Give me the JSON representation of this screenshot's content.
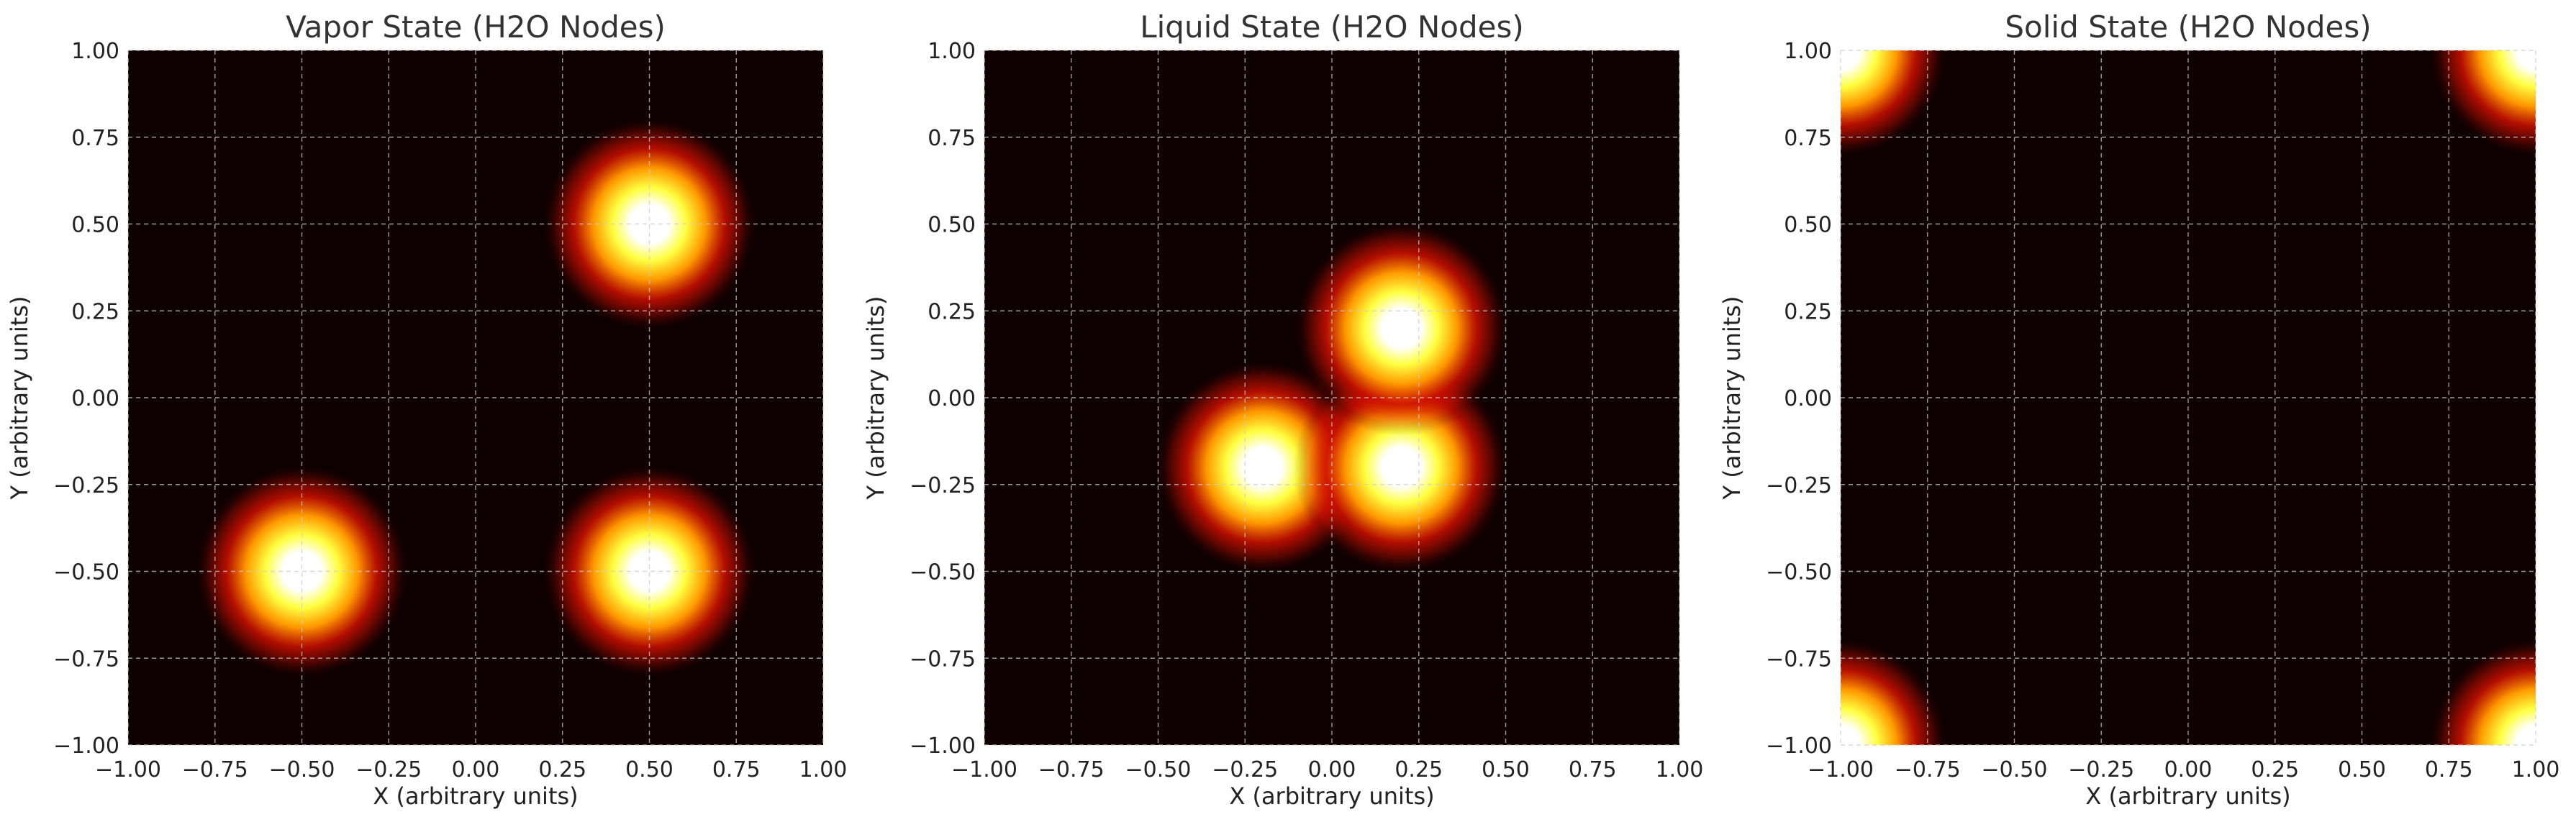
{
  "chart_data": [
    {
      "type": "heatmap",
      "title": "Vapor State (H2O Nodes)",
      "xlabel": "X (arbitrary units)",
      "ylabel": "Y (arbitrary units)",
      "xlim": [
        -1.0,
        1.0
      ],
      "ylim": [
        -1.0,
        1.0
      ],
      "xticks": [
        "−1.00",
        "−0.75",
        "−0.50",
        "−0.25",
        "0.00",
        "0.25",
        "0.50",
        "0.75",
        "1.00"
      ],
      "yticks": [
        "−1.00",
        "−0.75",
        "−0.50",
        "−0.25",
        "0.00",
        "0.25",
        "0.50",
        "0.75",
        "1.00"
      ],
      "colormap": "hot",
      "grid": true,
      "nodes": [
        {
          "x": -0.5,
          "y": -0.5
        },
        {
          "x": 0.5,
          "y": -0.5
        },
        {
          "x": 0.5,
          "y": 0.5
        }
      ]
    },
    {
      "type": "heatmap",
      "title": "Liquid State (H2O Nodes)",
      "xlabel": "X (arbitrary units)",
      "ylabel": "Y (arbitrary units)",
      "xlim": [
        -1.0,
        1.0
      ],
      "ylim": [
        -1.0,
        1.0
      ],
      "xticks": [
        "−1.00",
        "−0.75",
        "−0.50",
        "−0.25",
        "0.00",
        "0.25",
        "0.50",
        "0.75",
        "1.00"
      ],
      "yticks": [
        "−1.00",
        "−0.75",
        "−0.50",
        "−0.25",
        "0.00",
        "0.25",
        "0.50",
        "0.75",
        "1.00"
      ],
      "colormap": "hot",
      "grid": true,
      "nodes": [
        {
          "x": -0.2,
          "y": -0.2
        },
        {
          "x": 0.2,
          "y": -0.2
        },
        {
          "x": 0.2,
          "y": 0.2
        }
      ]
    },
    {
      "type": "heatmap",
      "title": "Solid State (H2O Nodes)",
      "xlabel": "X (arbitrary units)",
      "ylabel": "Y (arbitrary units)",
      "xlim": [
        -1.0,
        1.0
      ],
      "ylim": [
        -1.0,
        1.0
      ],
      "xticks": [
        "−1.00",
        "−0.75",
        "−0.50",
        "−0.25",
        "0.00",
        "0.25",
        "0.50",
        "0.75",
        "1.00"
      ],
      "yticks": [
        "−1.00",
        "−0.75",
        "−0.50",
        "−0.25",
        "0.00",
        "0.25",
        "0.50",
        "0.75",
        "1.00"
      ],
      "colormap": "hot",
      "grid": true,
      "nodes": [
        {
          "x": -1.0,
          "y": 1.0
        },
        {
          "x": 1.0,
          "y": 1.0
        },
        {
          "x": -1.0,
          "y": -1.0
        },
        {
          "x": 1.0,
          "y": -1.0
        }
      ]
    }
  ],
  "colors": {
    "background": "#0e0000",
    "grid": "#cccccc",
    "glow_core": "#ffffff",
    "glow_yellow": "#ffff40",
    "glow_orange": "#ff9800",
    "glow_red": "#d01000"
  }
}
